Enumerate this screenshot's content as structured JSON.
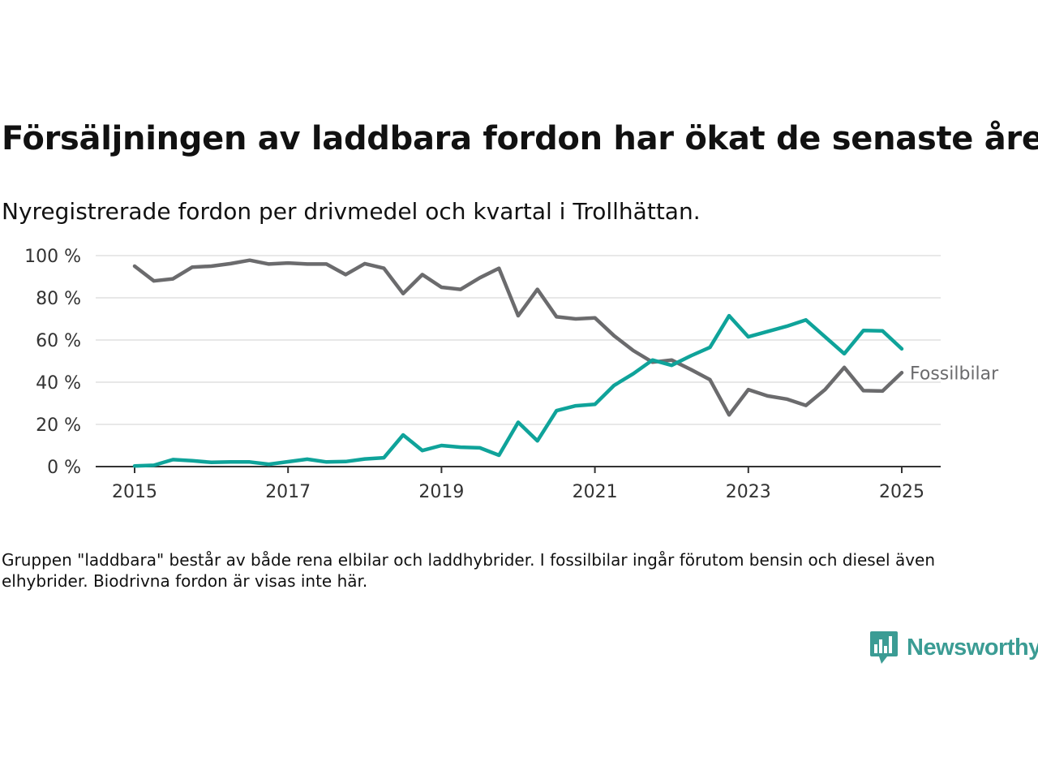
{
  "title": "Försäljningen av laddbara fordon har ökat de senaste åren",
  "subtitle": "Nyregistrerade fordon per drivmedel och kvartal i Trollhättan.",
  "note": "Gruppen \"laddbara\" består av både rena elbilar och laddhybrider. I fossilbilar ingår förutom bensin och diesel även elhybrider. Biodrivna fordon är visas inte här.",
  "brand": {
    "name": "Newsworthy",
    "icon": "bar-chart-speech-bubble-icon"
  },
  "colors": {
    "fossil": "#6b6b6d",
    "laddbara": "#0fa39a",
    "grid": "#d9d9d9",
    "axis": "#333333",
    "tick_text": "#333333"
  },
  "chart_data": {
    "type": "line",
    "x_unit": "year",
    "xlim": [
      2014.875,
      2025.0
    ],
    "ylim": [
      0,
      100
    ],
    "y_ticks": [
      0,
      20,
      40,
      60,
      80,
      100
    ],
    "y_tick_labels": [
      "0 %",
      "20 %",
      "40 %",
      "60 %",
      "80 %",
      "100 %"
    ],
    "x_ticks": [
      2015,
      2017,
      2019,
      2021,
      2023,
      2025
    ],
    "x_tick_labels": [
      "2015",
      "2017",
      "2019",
      "2021",
      "2023",
      "2025"
    ],
    "grid": true,
    "x": [
      2015.0,
      2015.25,
      2015.5,
      2015.75,
      2016.0,
      2016.25,
      2016.5,
      2016.75,
      2017.0,
      2017.25,
      2017.5,
      2017.75,
      2018.0,
      2018.25,
      2018.5,
      2018.75,
      2019.0,
      2019.25,
      2019.5,
      2019.75,
      2020.0,
      2020.25,
      2020.5,
      2020.75,
      2021.0,
      2021.25,
      2021.5,
      2021.75,
      2022.0,
      2022.25,
      2022.5,
      2022.75,
      2023.0,
      2023.25,
      2023.5,
      2023.75,
      2024.0,
      2024.25,
      2024.5,
      2024.75,
      2025.0
    ],
    "series": [
      {
        "name": "Fossilbilar",
        "labeled": true,
        "values": [
          95,
          88,
          89,
          94.5,
          95,
          96.2,
          97.8,
          96,
          96.5,
          96,
          96,
          91,
          96.2,
          94,
          82,
          91,
          85,
          84,
          89.5,
          94,
          71.5,
          84,
          71,
          70,
          70.5,
          62,
          55,
          49.5,
          50.5,
          46,
          41.2,
          24.5,
          36.5,
          33.5,
          32,
          29,
          36.5,
          47,
          36,
          35.8,
          44.5
        ]
      },
      {
        "name": "",
        "labeled": false,
        "values": [
          0.3,
          0.6,
          3.3,
          2.8,
          2,
          2.2,
          2.2,
          1.1,
          2.3,
          3.5,
          2.2,
          2.4,
          3.6,
          4.2,
          15,
          7.6,
          10,
          9.2,
          8.9,
          5.4,
          21,
          12.2,
          26.5,
          28.8,
          29.5,
          38.5,
          44,
          50.5,
          48,
          52.5,
          56.5,
          71.5,
          61.5,
          64,
          66.5,
          69.5,
          61.5,
          53.5,
          64.5,
          64.3,
          55.8
        ]
      }
    ]
  }
}
